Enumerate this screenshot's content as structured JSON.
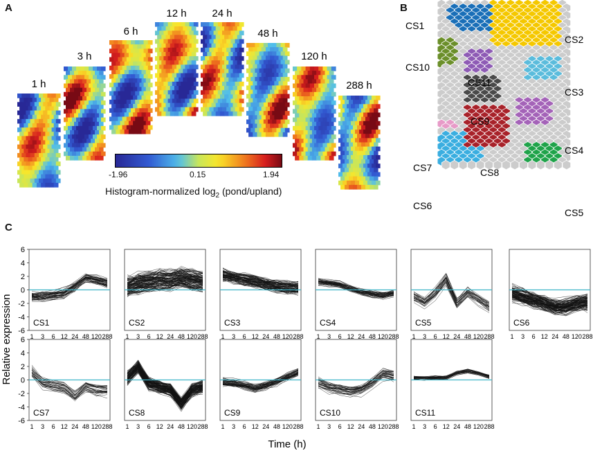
{
  "panel_a": {
    "label": "A",
    "maps": [
      {
        "time": "1 h"
      },
      {
        "time": "3 h"
      },
      {
        "time": "6 h"
      },
      {
        "time": "12 h"
      },
      {
        "time": "24 h"
      },
      {
        "time": "48 h"
      },
      {
        "time": "120 h"
      },
      {
        "time": "288 h"
      }
    ],
    "colorbar": {
      "min": "-1.96",
      "mid": "0.15",
      "max": "1.94",
      "label_main": "Histogram-normalized log",
      "label_sub": "2",
      "label_tail": " (pond/upland)"
    }
  },
  "panel_b": {
    "label": "B",
    "clusters": [
      {
        "name": "CS1",
        "color": "#1a6fb8"
      },
      {
        "name": "CS2",
        "color": "#f5c800"
      },
      {
        "name": "CS3",
        "color": "#5bbcdc"
      },
      {
        "name": "CS4",
        "color": "#a463b8"
      },
      {
        "name": "CS5",
        "color": "#1fa34a"
      },
      {
        "name": "CS6",
        "color": "#3aaee0"
      },
      {
        "name": "CS7",
        "color": "#e79bc8"
      },
      {
        "name": "CS8",
        "color": "#a8222a"
      },
      {
        "name": "CS9",
        "color": "#4a4a4a"
      },
      {
        "name": "CS10",
        "color": "#6b8f2a"
      },
      {
        "name": "CS11",
        "color": "#8e5bb5"
      }
    ],
    "grid_color": "#cccccc"
  },
  "panel_c": {
    "label": "C",
    "ylabel": "Relative expression",
    "xlabel": "Time (h)"
  },
  "chart_data": {
    "type": "line",
    "title": "",
    "xlabel": "Time (h)",
    "ylabel": "Relative expression",
    "x": [
      "1",
      "3",
      "6",
      "12",
      "24",
      "48",
      "120",
      "288"
    ],
    "ylim": [
      -6,
      6
    ],
    "yticks": [
      "6",
      "4",
      "2",
      "0",
      "-2",
      "-4",
      "-6"
    ],
    "baseline_color": "#3fb5c8",
    "series": [
      {
        "name": "CS1",
        "mean": [
          -1.0,
          -1.0,
          -0.8,
          -0.5,
          0.5,
          1.8,
          1.5,
          1.0
        ],
        "spread": 0.7,
        "count": 45
      },
      {
        "name": "CS2",
        "mean": [
          0.5,
          1.0,
          1.2,
          1.4,
          1.5,
          1.8,
          1.5,
          1.2
        ],
        "spread": 1.4,
        "count": 110
      },
      {
        "name": "CS3",
        "mean": [
          2.2,
          1.8,
          1.5,
          1.2,
          0.8,
          0.5,
          0.3,
          0.2
        ],
        "spread": 0.9,
        "count": 80
      },
      {
        "name": "CS4",
        "mean": [
          1.2,
          1.0,
          0.8,
          0.2,
          -0.3,
          -0.6,
          -0.8,
          -0.5
        ],
        "spread": 0.5,
        "count": 40
      },
      {
        "name": "CS5",
        "mean": [
          -1.0,
          -2.0,
          -0.5,
          1.5,
          -2.0,
          -0.5,
          -1.5,
          -2.5
        ],
        "spread": 0.9,
        "count": 30
      },
      {
        "name": "CS6",
        "mean": [
          -0.5,
          -1.0,
          -1.5,
          -2.0,
          -2.5,
          -2.5,
          -2.0,
          -1.8
        ],
        "spread": 1.2,
        "count": 110
      },
      {
        "name": "CS7",
        "mean": [
          1.0,
          -0.5,
          -1.0,
          -1.2,
          -2.5,
          -1.0,
          -1.5,
          -1.5
        ],
        "spread": 0.9,
        "count": 30
      },
      {
        "name": "CS8",
        "mean": [
          0.3,
          2.0,
          -0.5,
          -1.0,
          -1.5,
          -3.5,
          -1.5,
          -1.0
        ],
        "spread": 0.9,
        "count": 110
      },
      {
        "name": "CS9",
        "mean": [
          -0.3,
          -0.5,
          -0.8,
          -1.2,
          -0.8,
          -0.2,
          0.5,
          1.2
        ],
        "spread": 0.6,
        "count": 45
      },
      {
        "name": "CS10",
        "mean": [
          -0.5,
          -1.2,
          -1.5,
          -1.8,
          -1.5,
          -0.5,
          0.8,
          0.5
        ],
        "spread": 0.8,
        "count": 35
      },
      {
        "name": "CS11",
        "mean": [
          0.3,
          0.2,
          0.3,
          0.3,
          1.0,
          1.3,
          1.0,
          0.5
        ],
        "spread": 0.3,
        "count": 30
      }
    ]
  }
}
